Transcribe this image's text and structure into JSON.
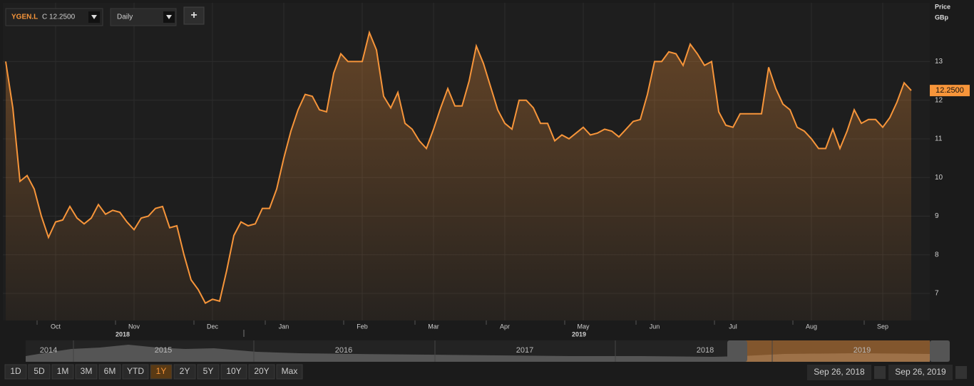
{
  "toolbar": {
    "symbol": "YGEN.L",
    "quote": "C 12.2500",
    "interval": "Daily",
    "add": "+"
  },
  "chart_data": {
    "type": "line",
    "y_axis_title": "Price",
    "y_axis_unit": "GBp",
    "categories": [
      null,
      null,
      null,
      null,
      null,
      null,
      null,
      "Oct",
      null,
      null,
      null,
      null,
      null,
      null,
      null,
      null,
      null,
      null,
      "Nov",
      null,
      null,
      null,
      null,
      null,
      null,
      null,
      null,
      null,
      null,
      "Dec",
      null,
      null,
      null,
      null,
      null,
      null,
      null,
      null,
      null,
      "Jan",
      null,
      null,
      null,
      null,
      null,
      null,
      null,
      null,
      null,
      null,
      "Feb",
      null,
      null,
      null,
      null,
      null,
      null,
      null,
      null,
      null,
      "Mar",
      null,
      null,
      null,
      null,
      null,
      null,
      null,
      null,
      null,
      "Apr",
      null,
      null,
      null,
      null,
      null,
      null,
      null,
      null,
      null,
      null,
      "May",
      null,
      null,
      null,
      null,
      null,
      null,
      null,
      null,
      null,
      "Jun",
      null,
      null,
      null,
      null,
      null,
      null,
      null,
      null,
      null,
      null,
      "Jul",
      null,
      null,
      null,
      null,
      null,
      null,
      null,
      null,
      null,
      null,
      "Aug",
      null,
      null,
      null,
      null,
      null,
      null,
      null,
      null,
      null,
      "Sep",
      null,
      null,
      null,
      null
    ],
    "x_year_labels": [
      "2018",
      "2019"
    ],
    "series": [
      {
        "name": "YGEN.L",
        "color": "#f7953a",
        "values": [
          13.0,
          11.8,
          9.9,
          10.05,
          9.7,
          9.0,
          8.45,
          8.85,
          8.9,
          9.25,
          8.95,
          8.8,
          8.95,
          9.3,
          9.05,
          9.15,
          9.1,
          8.85,
          8.65,
          8.95,
          9.0,
          9.2,
          9.25,
          8.7,
          8.75,
          8.0,
          7.35,
          7.1,
          6.75,
          6.85,
          6.8,
          7.6,
          8.5,
          8.85,
          8.75,
          8.8,
          9.2,
          9.2,
          9.7,
          10.5,
          11.2,
          11.75,
          12.15,
          12.1,
          11.75,
          11.7,
          12.7,
          13.2,
          13.0,
          13.0,
          13.0,
          13.75,
          13.3,
          12.1,
          11.8,
          12.2,
          11.4,
          11.25,
          10.95,
          10.75,
          11.25,
          11.8,
          12.3,
          11.85,
          11.85,
          12.5,
          13.4,
          12.95,
          12.35,
          11.75,
          11.4,
          11.25,
          12.0,
          12.0,
          11.8,
          11.4,
          11.4,
          10.95,
          11.1,
          11.0,
          11.15,
          11.3,
          11.1,
          11.15,
          11.25,
          11.2,
          11.05,
          11.25,
          11.45,
          11.5,
          12.15,
          13.0,
          13.0,
          13.25,
          13.2,
          12.9,
          13.45,
          13.2,
          12.9,
          13.0,
          11.7,
          11.35,
          11.3,
          11.65,
          11.65,
          11.65,
          11.65,
          12.85,
          12.3,
          11.9,
          11.75,
          11.3,
          11.2,
          11.0,
          10.75,
          10.75,
          11.25,
          10.75,
          11.2,
          11.75,
          11.4,
          11.5,
          11.5,
          11.3,
          11.55,
          11.95,
          12.45,
          12.25
        ]
      }
    ],
    "last_label": "12.2500",
    "ylim": [
      6.3,
      14.5
    ],
    "yticks": [
      7,
      8,
      9,
      10,
      11,
      12,
      13
    ],
    "grid": true
  },
  "navigator": {
    "years": [
      "2014",
      "2015",
      "2016",
      "2017",
      "2018",
      "2019"
    ]
  },
  "ranges": [
    "1D",
    "5D",
    "1M",
    "3M",
    "6M",
    "YTD",
    "1Y",
    "2Y",
    "5Y",
    "10Y",
    "20Y",
    "Max"
  ],
  "active_range": "1Y",
  "dates": [
    "Sep 26, 2018",
    "Sep 26, 2019"
  ]
}
